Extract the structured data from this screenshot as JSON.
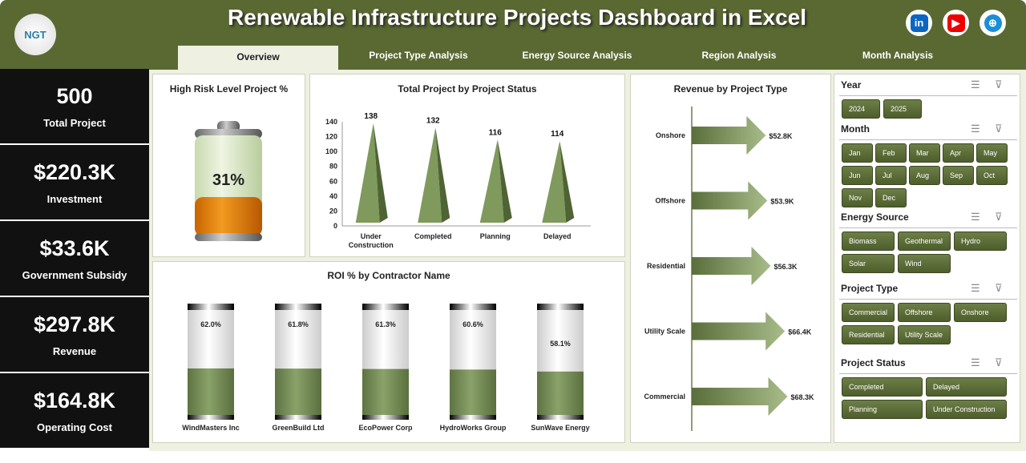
{
  "header": {
    "title": "Renewable Infrastructure Projects Dashboard in Excel",
    "logo_text": "NGT",
    "social": [
      "linkedin-icon",
      "youtube-icon",
      "globe-icon"
    ]
  },
  "tabs": [
    {
      "label": "Overview",
      "active": true
    },
    {
      "label": "Project Type Analysis"
    },
    {
      "label": "Energy Source Analysis"
    },
    {
      "label": "Region Analysis"
    },
    {
      "label": "Month Analysis"
    }
  ],
  "kpis": [
    {
      "value": "500",
      "label": "Total Project"
    },
    {
      "value": "$220.3K",
      "label": "Investment"
    },
    {
      "value": "$33.6K",
      "label": "Government Subsidy"
    },
    {
      "value": "$297.8K",
      "label": "Revenue"
    },
    {
      "value": "$164.8K",
      "label": "Operating Cost"
    }
  ],
  "colors": {
    "header": "#5a6932",
    "bar": "#7f9a5c",
    "accent": "#e07b00"
  },
  "chart_data": [
    {
      "type": "gauge",
      "title": "High Risk Level Project %",
      "value": 31,
      "label": "31%"
    },
    {
      "type": "bar",
      "title": "Total Project by Project Status",
      "categories": [
        "Under Construction",
        "Completed",
        "Planning",
        "Delayed"
      ],
      "values": [
        138,
        132,
        116,
        114
      ],
      "ylim": [
        0,
        140
      ],
      "yticks": [
        "0",
        "20",
        "40",
        "60",
        "80",
        "100",
        "120",
        "140"
      ]
    },
    {
      "type": "bar",
      "title": "ROI % by Contractor Name",
      "categories": [
        "WindMasters Inc",
        "GreenBuild Ltd",
        "EcoPower Corp",
        "HydroWorks Group",
        "SunWave Energy"
      ],
      "values": [
        62.0,
        61.8,
        61.3,
        60.6,
        58.1
      ],
      "labels": [
        "62.0%",
        "61.8%",
        "61.3%",
        "60.6%",
        "58.1%"
      ]
    },
    {
      "type": "bar",
      "orientation": "horizontal",
      "title": "Revenue by Project Type",
      "categories": [
        "Onshore",
        "Offshore",
        "Residential",
        "Utility Scale",
        "Commercial"
      ],
      "values": [
        52.8,
        53.9,
        56.3,
        66.4,
        68.3
      ],
      "labels": [
        "$52.8K",
        "$53.9K",
        "$56.3K",
        "$66.4K",
        "$68.3K"
      ]
    }
  ],
  "slicers": [
    {
      "title": "Year",
      "items": [
        "2024",
        "2025"
      ]
    },
    {
      "title": "Month",
      "items": [
        "Jan",
        "Feb",
        "Mar",
        "Apr",
        "May",
        "Jun",
        "Jul",
        "Aug",
        "Sep",
        "Oct",
        "Nov",
        "Dec"
      ]
    },
    {
      "title": "Energy Source",
      "items": [
        "Biomass",
        "Geothermal",
        "Hydro",
        "Solar",
        "Wind"
      ]
    },
    {
      "title": "Project Type",
      "items": [
        "Commercial",
        "Offshore",
        "Onshore",
        "Residential",
        "Utility Scale"
      ]
    },
    {
      "title": "Project Status",
      "items": [
        "Completed",
        "Delayed",
        "Planning",
        "Under Construction"
      ]
    }
  ]
}
